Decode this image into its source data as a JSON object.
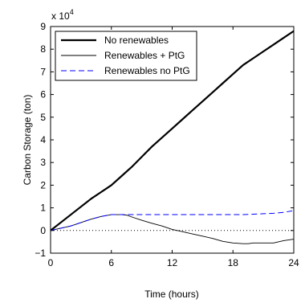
{
  "chart_data": {
    "type": "line",
    "title": "",
    "xlabel": "Time (hours)",
    "ylabel": "Carbon Storage (ton)",
    "y_multiplier_label": "x 10",
    "y_multiplier_exponent": "4",
    "xlim": [
      0,
      24
    ],
    "ylim": [
      -1,
      9
    ],
    "xticks": [
      0,
      6,
      12,
      18,
      24
    ],
    "yticks": [
      -1,
      0,
      1,
      2,
      3,
      4,
      5,
      6,
      7,
      8,
      9
    ],
    "grid": false,
    "legend": "top-left",
    "zero_line": {
      "y": 0,
      "style": "dotted"
    },
    "series": [
      {
        "name": "No renewables",
        "color": "#000000",
        "style": "solid-thick",
        "x": [
          0,
          1,
          2,
          3,
          4,
          5,
          6,
          7,
          8,
          9,
          10,
          11,
          12,
          13,
          14,
          15,
          16,
          17,
          18,
          19,
          20,
          21,
          22,
          23,
          24
        ],
        "y": [
          0,
          0.35,
          0.7,
          1.05,
          1.4,
          1.7,
          2.0,
          2.4,
          2.8,
          3.25,
          3.7,
          4.1,
          4.5,
          4.9,
          5.3,
          5.7,
          6.1,
          6.5,
          6.9,
          7.3,
          7.6,
          7.9,
          8.2,
          8.5,
          8.8
        ]
      },
      {
        "name": "Renewables + PtG",
        "color": "#000000",
        "style": "solid-thin",
        "x": [
          0,
          1,
          2,
          3,
          4,
          5,
          6,
          7,
          7.5,
          8,
          9,
          10,
          11,
          12,
          13,
          14,
          15,
          16,
          17,
          18,
          19,
          19.5,
          20,
          21,
          22,
          23,
          24
        ],
        "y": [
          0,
          0.1,
          0.2,
          0.35,
          0.5,
          0.62,
          0.7,
          0.7,
          0.68,
          0.6,
          0.45,
          0.32,
          0.2,
          0.05,
          -0.05,
          -0.15,
          -0.25,
          -0.35,
          -0.48,
          -0.55,
          -0.58,
          -0.58,
          -0.55,
          -0.55,
          -0.55,
          -0.45,
          -0.38
        ]
      },
      {
        "name": "Renewables no PtG",
        "color": "#0000ff",
        "style": "dashed",
        "x": [
          0,
          1,
          2,
          3,
          4,
          5,
          6,
          7,
          8,
          9,
          10,
          11,
          12,
          13,
          14,
          15,
          16,
          17,
          18,
          19,
          20,
          21,
          22,
          23,
          24
        ],
        "y": [
          0,
          0.1,
          0.2,
          0.35,
          0.5,
          0.62,
          0.7,
          0.7,
          0.7,
          0.7,
          0.7,
          0.7,
          0.7,
          0.7,
          0.7,
          0.7,
          0.7,
          0.7,
          0.7,
          0.7,
          0.72,
          0.74,
          0.76,
          0.8,
          0.88
        ]
      }
    ]
  }
}
